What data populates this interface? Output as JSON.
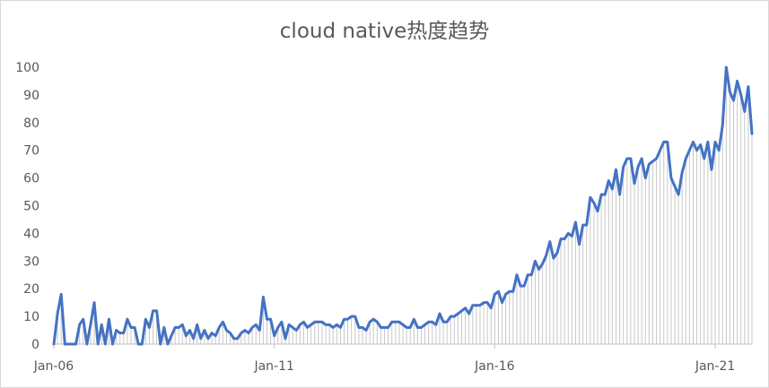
{
  "chart_data": {
    "type": "line",
    "title": "cloud native热度趋势",
    "xlabel": "",
    "ylabel": "",
    "ylim": [
      0,
      100
    ],
    "y_ticks": [
      "0",
      "10",
      "20",
      "30",
      "40",
      "50",
      "60",
      "70",
      "80",
      "90",
      "100"
    ],
    "x_ticks": [
      "Jan-06",
      "Jan-11",
      "Jan-16",
      "Jan-21"
    ],
    "x_start": "2006-01",
    "x_end": "2022-05",
    "grid": false,
    "vertical_drop_lines": true,
    "line_color": "#4472c4",
    "drop_line_color": "#c8c8c8",
    "series": [
      {
        "values": [
          0,
          11,
          18,
          0,
          0,
          0,
          0,
          7,
          9,
          0,
          7,
          15,
          0,
          7,
          0,
          9,
          0,
          5,
          4,
          4,
          9,
          6,
          6,
          0,
          0,
          9,
          6,
          12,
          12,
          0,
          6,
          0,
          3,
          6,
          6,
          7,
          3,
          5,
          2,
          7,
          2,
          5,
          2,
          4,
          3,
          6,
          8,
          5,
          4,
          2,
          2,
          4,
          5,
          4,
          6,
          7,
          5,
          17,
          9,
          9,
          3,
          6,
          8,
          2,
          7,
          6,
          5,
          7,
          8,
          6,
          7,
          8,
          8,
          8,
          7,
          7,
          6,
          7,
          6,
          9,
          9,
          10,
          10,
          6,
          6,
          5,
          8,
          9,
          8,
          6,
          6,
          6,
          8,
          8,
          8,
          7,
          6,
          6,
          9,
          6,
          6,
          7,
          8,
          8,
          7,
          11,
          8,
          8,
          10,
          10,
          11,
          12,
          13,
          11,
          14,
          14,
          14,
          15,
          15,
          13,
          18,
          19,
          15,
          18,
          19,
          19,
          25,
          21,
          21,
          25,
          25,
          30,
          27,
          29,
          32,
          37,
          31,
          33,
          38,
          38,
          40,
          39,
          44,
          36,
          43,
          43,
          53,
          51,
          48,
          54,
          54,
          59,
          56,
          63,
          54,
          64,
          67,
          67,
          58,
          64,
          67,
          60,
          65,
          66,
          67,
          70,
          73,
          73,
          60,
          57,
          54,
          62,
          67,
          70,
          73,
          70,
          72,
          67,
          73,
          63,
          73,
          70,
          79,
          100,
          91,
          88,
          95,
          90,
          84,
          93,
          76
        ]
      }
    ]
  }
}
